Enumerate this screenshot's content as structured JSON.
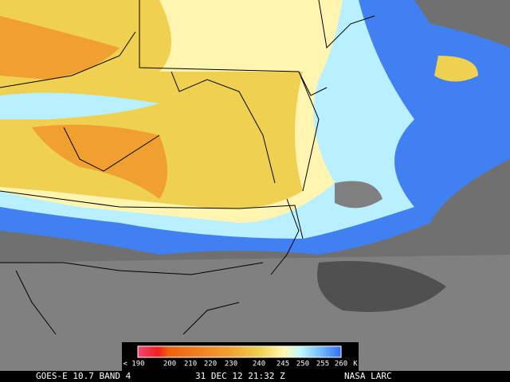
{
  "legend": {
    "labels": [
      "< 190",
      "200",
      "210",
      "220",
      "230",
      "240",
      "245",
      "250",
      "255",
      "260",
      "K"
    ]
  },
  "footer": {
    "satellite": "GOES-E 10.7 BAND 4",
    "time": "31 DEC 12 21:32 Z",
    "source": "NASA LARC"
  }
}
